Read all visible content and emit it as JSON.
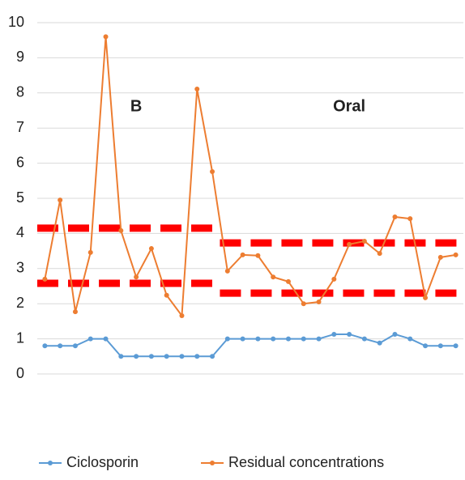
{
  "chart_data": {
    "type": "line",
    "categories": [
      null,
      null,
      null,
      null,
      null,
      null,
      null,
      null,
      null,
      null,
      null,
      null,
      null,
      null,
      null,
      null,
      null,
      null,
      null,
      null,
      null,
      null,
      null,
      null,
      null,
      null,
      null,
      null
    ],
    "series": [
      {
        "name": "Ciclosporin",
        "color": "#5b9bd5",
        "values": [
          0.8,
          0.8,
          0.8,
          1.0,
          1.0,
          0.5,
          0.5,
          0.5,
          0.5,
          0.5,
          0.5,
          0.5,
          1.0,
          1.0,
          1.0,
          1.0,
          1.0,
          1.0,
          1.0,
          1.13,
          1.13,
          1.0,
          0.88,
          1.13,
          1.0,
          0.8,
          0.8,
          0.8
        ]
      },
      {
        "name": "Residual concentrations",
        "color": "#ed7d31",
        "values": [
          2.7,
          4.95,
          1.77,
          3.46,
          9.6,
          4.08,
          2.76,
          3.57,
          2.24,
          1.66,
          8.11,
          5.76,
          2.93,
          3.39,
          3.37,
          2.76,
          2.63,
          2.0,
          2.05,
          2.7,
          3.69,
          3.78,
          3.43,
          4.47,
          4.42,
          2.17,
          3.32,
          3.39
        ]
      }
    ],
    "reference_lines": [
      {
        "color": "#ff0000",
        "from": 0,
        "to": 11,
        "values": [
          4.15,
          2.58
        ]
      },
      {
        "color": "#ff0000",
        "from": 12,
        "to": 27,
        "values": [
          3.73,
          2.3
        ]
      }
    ],
    "annotations": [
      {
        "text": "B",
        "at": 6
      },
      {
        "text": "Oral",
        "at": 20
      }
    ],
    "ylim": [
      0,
      10
    ],
    "yticks": [
      0,
      1,
      2,
      3,
      4,
      5,
      6,
      7,
      8,
      9,
      10
    ],
    "grid": true
  }
}
